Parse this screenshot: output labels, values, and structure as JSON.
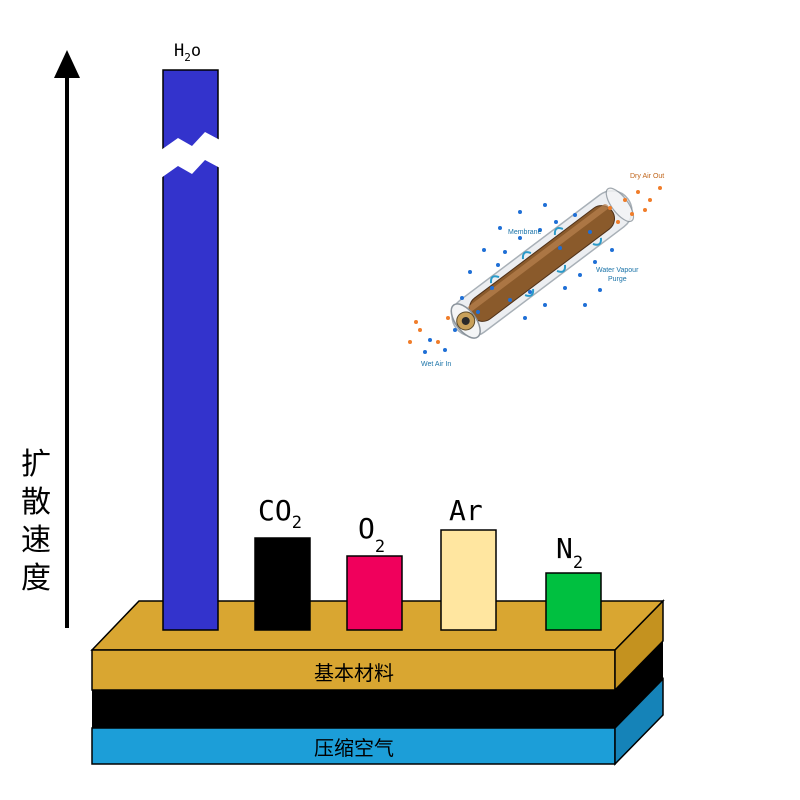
{
  "axis": {
    "label": "扩散速度"
  },
  "layers": {
    "base_material": "基本材料",
    "compressed_air": "压缩空气"
  },
  "gases": [
    {
      "symbol": "H",
      "subscript": "2",
      "suffix": "o",
      "color": "#3333cc"
    },
    {
      "symbol": "CO",
      "subscript": "2",
      "suffix": "",
      "color": "#000000"
    },
    {
      "symbol": "O",
      "subscript": "2",
      "suffix": "",
      "color": "#f0005c"
    },
    {
      "symbol": "Ar",
      "subscript": "",
      "suffix": "",
      "color": "#ffe6a0"
    },
    {
      "symbol": "N",
      "subscript": "2",
      "suffix": "",
      "color": "#00c040"
    }
  ],
  "inset": {
    "dry_air_out": "Dry Air Out",
    "membrane": "Membrane",
    "water_vapour_purge_line1": "Water Vapour",
    "water_vapour_purge_line2": "Purge",
    "wet_air_in": "Wet Air In"
  },
  "colors": {
    "gold_layer": "#d9a631",
    "black_layer": "#000000",
    "blue_layer": "#1c9ed8"
  }
}
